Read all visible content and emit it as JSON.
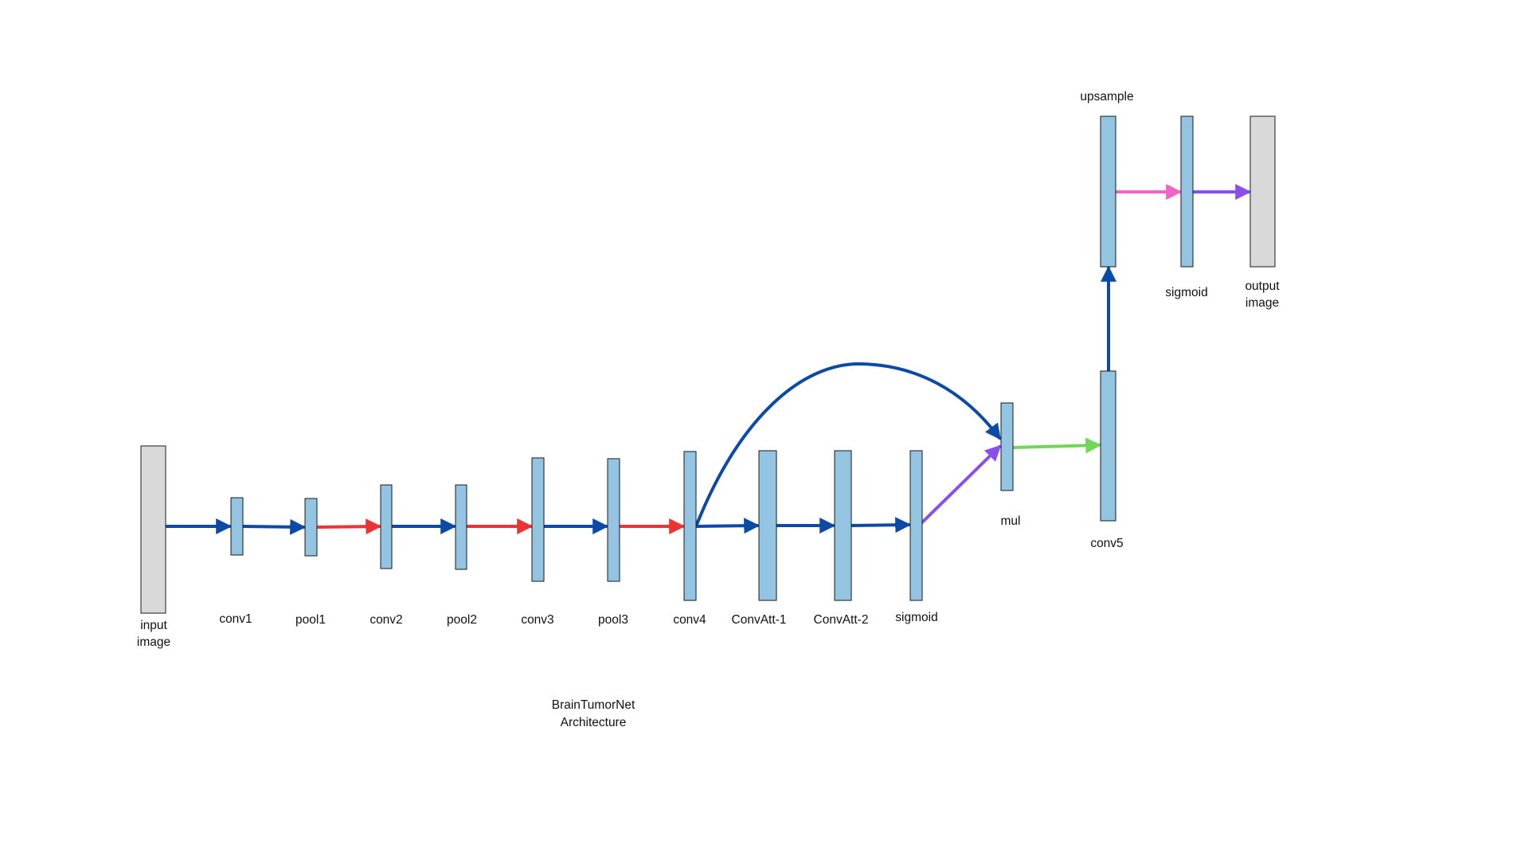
{
  "title_lines": [
    "BrainTumorNet",
    "Architecture"
  ],
  "colors": {
    "background": "#ffffff",
    "io_block": "#d9d9d9",
    "layer_block": "#93c4e1",
    "block_border": "#1a1a1a",
    "arrow_blue": "#0b4aa6",
    "arrow_red": "#ec3434",
    "arrow_purple": "#8a4fea",
    "arrow_green": "#74d656",
    "arrow_pink": "#f064c3"
  },
  "blocks": [
    {
      "id": "input",
      "kind": "io",
      "label": [
        "input",
        "image"
      ]
    },
    {
      "id": "conv1",
      "kind": "layer",
      "label": [
        "conv1"
      ]
    },
    {
      "id": "pool1",
      "kind": "layer",
      "label": [
        "pool1"
      ]
    },
    {
      "id": "conv2",
      "kind": "layer",
      "label": [
        "conv2"
      ]
    },
    {
      "id": "pool2",
      "kind": "layer",
      "label": [
        "pool2"
      ]
    },
    {
      "id": "conv3",
      "kind": "layer",
      "label": [
        "conv3"
      ]
    },
    {
      "id": "pool3",
      "kind": "layer",
      "label": [
        "pool3"
      ]
    },
    {
      "id": "conv4",
      "kind": "layer",
      "label": [
        "conv4"
      ]
    },
    {
      "id": "convatt1",
      "kind": "layer",
      "label": [
        "ConvAtt-1"
      ]
    },
    {
      "id": "convatt2",
      "kind": "layer",
      "label": [
        "ConvAtt-2"
      ]
    },
    {
      "id": "sigmoid1",
      "kind": "layer",
      "label": [
        "sigmoid"
      ]
    },
    {
      "id": "mul",
      "kind": "layer",
      "label": [
        "mul"
      ]
    },
    {
      "id": "conv5",
      "kind": "layer",
      "label": [
        "conv5"
      ]
    },
    {
      "id": "upsample",
      "kind": "layer",
      "label": [
        "upsample"
      ]
    },
    {
      "id": "sigmoid2",
      "kind": "layer",
      "label": [
        "sigmoid"
      ]
    },
    {
      "id": "output",
      "kind": "io",
      "label": [
        "output",
        "image"
      ]
    }
  ],
  "edges": [
    {
      "from": "input",
      "to": "conv1",
      "color": "blue"
    },
    {
      "from": "conv1",
      "to": "pool1",
      "color": "blue"
    },
    {
      "from": "pool1",
      "to": "conv2",
      "color": "red"
    },
    {
      "from": "conv2",
      "to": "pool2",
      "color": "blue"
    },
    {
      "from": "pool2",
      "to": "conv3",
      "color": "red"
    },
    {
      "from": "conv3",
      "to": "pool3",
      "color": "blue"
    },
    {
      "from": "pool3",
      "to": "conv4",
      "color": "red"
    },
    {
      "from": "conv4",
      "to": "convatt1",
      "color": "blue"
    },
    {
      "from": "convatt1",
      "to": "convatt2",
      "color": "blue"
    },
    {
      "from": "convatt2",
      "to": "sigmoid1",
      "color": "blue"
    },
    {
      "from": "sigmoid1",
      "to": "mul",
      "color": "purple"
    },
    {
      "from": "conv4",
      "to": "mul",
      "color": "blue",
      "curved": true
    },
    {
      "from": "mul",
      "to": "conv5",
      "color": "green"
    },
    {
      "from": "conv5",
      "to": "upsample",
      "color": "blue"
    },
    {
      "from": "upsample",
      "to": "sigmoid2",
      "color": "pink"
    },
    {
      "from": "sigmoid2",
      "to": "output",
      "color": "purple"
    }
  ]
}
